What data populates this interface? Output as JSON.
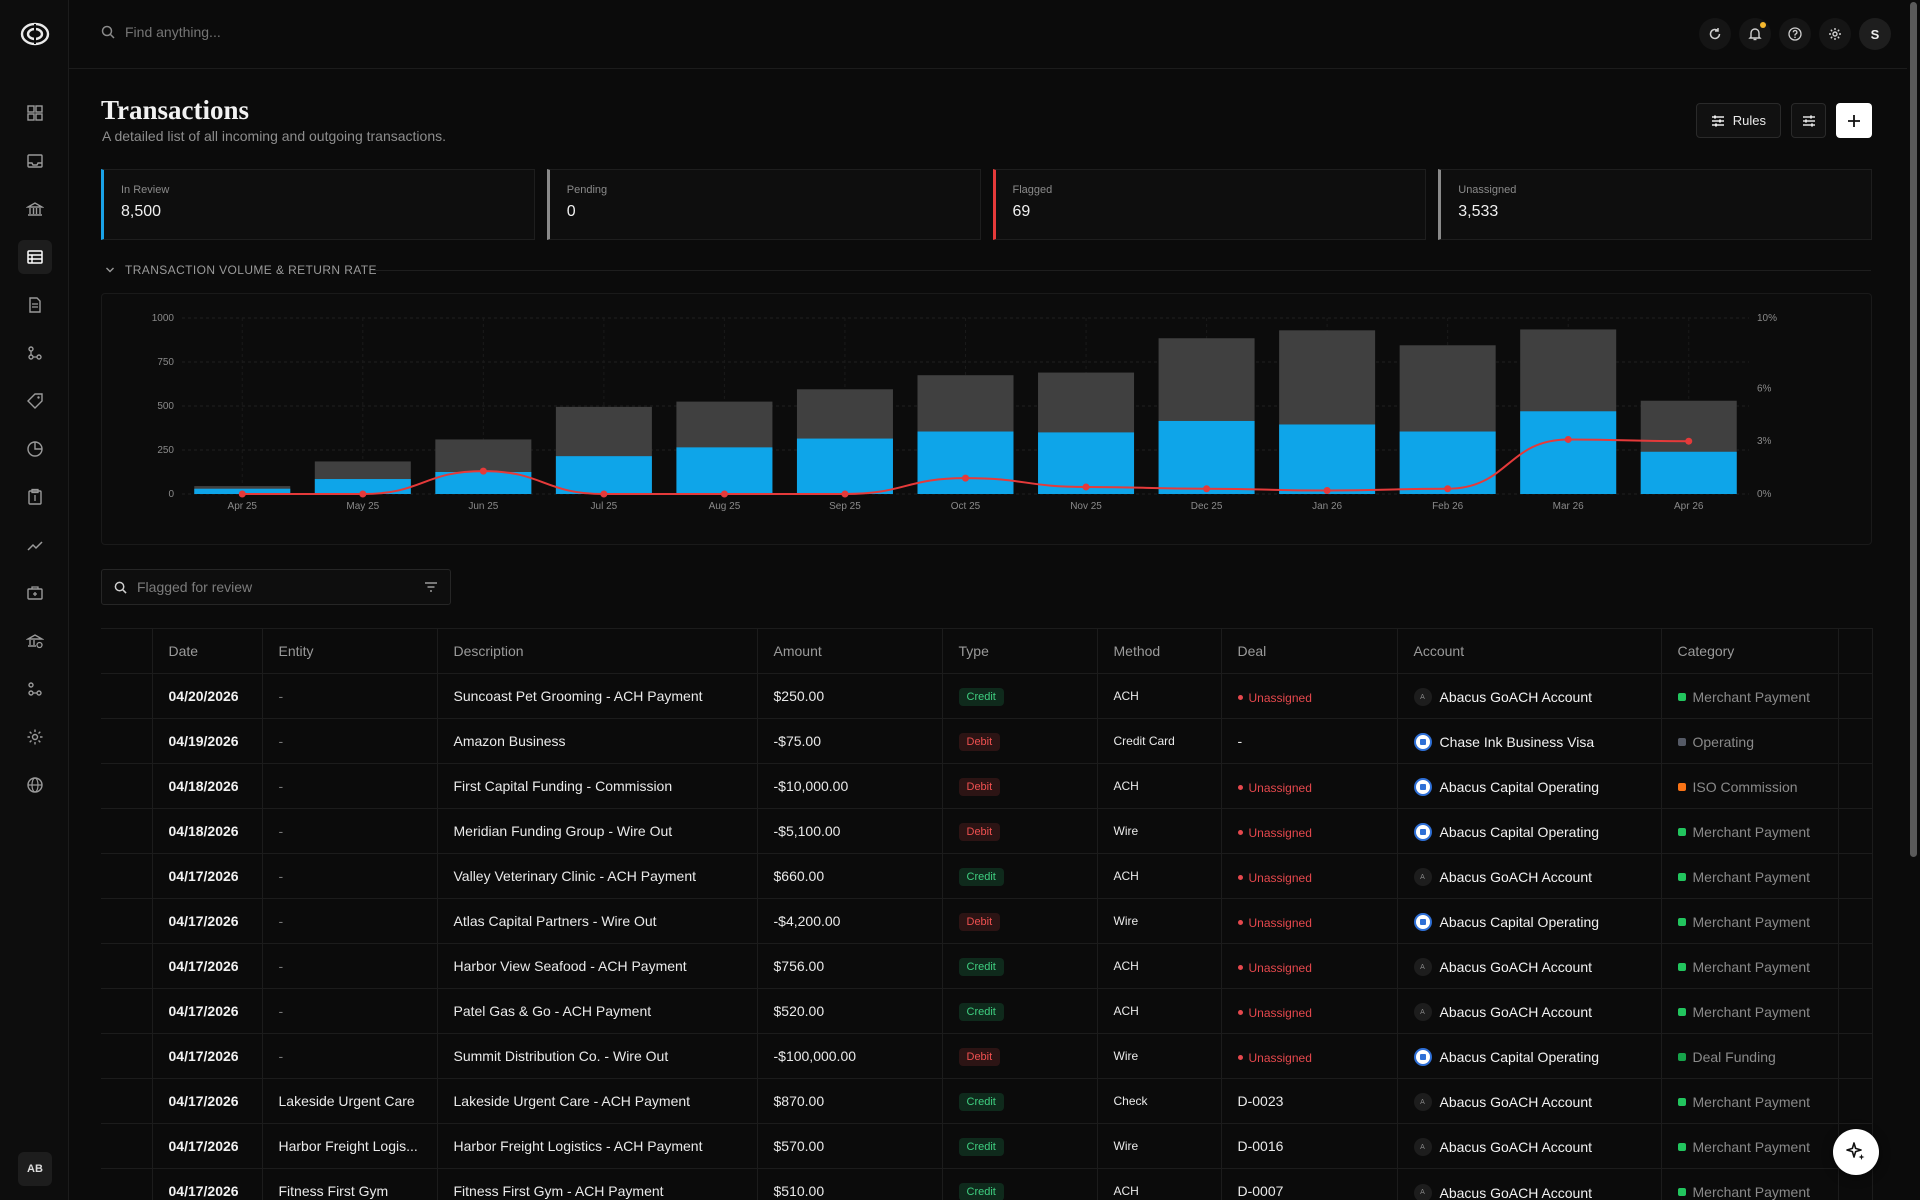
{
  "search": {
    "placeholder": "Find anything..."
  },
  "user": {
    "initial": "S",
    "workspace_initials": "AB"
  },
  "page": {
    "title": "Transactions",
    "subtitle": "A detailed list of all incoming and outgoing transactions.",
    "rules_label": "Rules"
  },
  "stats": [
    {
      "label": "In Review",
      "value": "8,500",
      "color": "#1aa3e8"
    },
    {
      "label": "Pending",
      "value": "0",
      "color": "#8a8a8a"
    },
    {
      "label": "Flagged",
      "value": "69",
      "color": "#e53a3a"
    },
    {
      "label": "Unassigned",
      "value": "3,533",
      "color": "#8a8a8a"
    }
  ],
  "chart_section": {
    "title": "TRANSACTION VOLUME & RETURN RATE"
  },
  "chart_data": {
    "type": "bar",
    "categories": [
      "Apr 25",
      "May 25",
      "Jun 25",
      "Jul 25",
      "Aug 25",
      "Sep 25",
      "Oct 25",
      "Nov 25",
      "Dec 25",
      "Jan 26",
      "Feb 26",
      "Mar 26",
      "Apr 26"
    ],
    "series": [
      {
        "values": [
          45,
          185,
          310,
          495,
          525,
          595,
          675,
          690,
          885,
          930,
          845,
          935,
          530
        ],
        "color": "#404040"
      },
      {
        "values": [
          30,
          85,
          125,
          215,
          265,
          315,
          355,
          350,
          415,
          395,
          355,
          470,
          240
        ],
        "color": "#0ea5e9"
      },
      {
        "values": [
          0,
          0,
          1.3,
          0,
          0,
          0,
          0.9,
          0.4,
          0.3,
          0.2,
          0.3,
          3.1,
          3.0
        ],
        "color": "#e53a3a",
        "axis": "right"
      }
    ],
    "y_left": {
      "ticks": [
        "0",
        "250",
        "500",
        "750",
        "1000"
      ],
      "range": [
        0,
        1000
      ]
    },
    "y_right": {
      "ticks": [
        "0%",
        "3%",
        "6%",
        "10%"
      ],
      "range": [
        0,
        10
      ]
    },
    "grid": true
  },
  "filter": {
    "placeholder": "Flagged for review"
  },
  "table": {
    "columns": [
      "Date",
      "Entity",
      "Description",
      "Amount",
      "Type",
      "Method",
      "Deal",
      "Account",
      "Category"
    ],
    "rows": [
      {
        "date": "04/20/2026",
        "entity": "-",
        "description": "Suncoast Pet Grooming - ACH Payment",
        "amount": "$250.00",
        "type": "Credit",
        "method": "ACH",
        "deal": "Unassigned",
        "account": "Abacus GoACH Account",
        "account_icon": "a",
        "category": "Merchant Payment",
        "category_color": "#22c55e"
      },
      {
        "date": "04/19/2026",
        "entity": "-",
        "description": "Amazon Business",
        "amount": "-$75.00",
        "type": "Debit",
        "method": "Credit Card",
        "deal": "-",
        "account": "Chase Ink Business Visa",
        "account_icon": "bank",
        "category": "Operating",
        "category_color": "#555a66"
      },
      {
        "date": "04/18/2026",
        "entity": "-",
        "description": "First Capital Funding - Commission",
        "amount": "-$10,000.00",
        "type": "Debit",
        "method": "ACH",
        "deal": "Unassigned",
        "account": "Abacus Capital Operating",
        "account_icon": "bank",
        "category": "ISO Commission",
        "category_color": "#f97316"
      },
      {
        "date": "04/18/2026",
        "entity": "-",
        "description": "Meridian Funding Group - Wire Out",
        "amount": "-$5,100.00",
        "type": "Debit",
        "method": "Wire",
        "deal": "Unassigned",
        "account": "Abacus Capital Operating",
        "account_icon": "bank",
        "category": "Merchant Payment",
        "category_color": "#22c55e"
      },
      {
        "date": "04/17/2026",
        "entity": "-",
        "description": "Valley Veterinary Clinic - ACH Payment",
        "amount": "$660.00",
        "type": "Credit",
        "method": "ACH",
        "deal": "Unassigned",
        "account": "Abacus GoACH Account",
        "account_icon": "a",
        "category": "Merchant Payment",
        "category_color": "#22c55e"
      },
      {
        "date": "04/17/2026",
        "entity": "-",
        "description": "Atlas Capital Partners - Wire Out",
        "amount": "-$4,200.00",
        "type": "Debit",
        "method": "Wire",
        "deal": "Unassigned",
        "account": "Abacus Capital Operating",
        "account_icon": "bank",
        "category": "Merchant Payment",
        "category_color": "#22c55e"
      },
      {
        "date": "04/17/2026",
        "entity": "-",
        "description": "Harbor View Seafood - ACH Payment",
        "amount": "$756.00",
        "type": "Credit",
        "method": "ACH",
        "deal": "Unassigned",
        "account": "Abacus GoACH Account",
        "account_icon": "a",
        "category": "Merchant Payment",
        "category_color": "#22c55e"
      },
      {
        "date": "04/17/2026",
        "entity": "-",
        "description": "Patel Gas & Go - ACH Payment",
        "amount": "$520.00",
        "type": "Credit",
        "method": "ACH",
        "deal": "Unassigned",
        "account": "Abacus GoACH Account",
        "account_icon": "a",
        "category": "Merchant Payment",
        "category_color": "#22c55e"
      },
      {
        "date": "04/17/2026",
        "entity": "-",
        "description": "Summit Distribution Co. - Wire Out",
        "amount": "-$100,000.00",
        "type": "Debit",
        "method": "Wire",
        "deal": "Unassigned",
        "account": "Abacus Capital Operating",
        "account_icon": "bank",
        "category": "Deal Funding",
        "category_color": "#16a34a"
      },
      {
        "date": "04/17/2026",
        "entity": "Lakeside Urgent Care",
        "description": "Lakeside Urgent Care - ACH Payment",
        "amount": "$870.00",
        "type": "Credit",
        "method": "Check",
        "deal": "D-0023",
        "account": "Abacus GoACH Account",
        "account_icon": "a",
        "category": "Merchant Payment",
        "category_color": "#22c55e"
      },
      {
        "date": "04/17/2026",
        "entity": "Harbor Freight Logis...",
        "description": "Harbor Freight Logistics - ACH Payment",
        "amount": "$570.00",
        "type": "Credit",
        "method": "Wire",
        "deal": "D-0016",
        "account": "Abacus GoACH Account",
        "account_icon": "a",
        "category": "Merchant Payment",
        "category_color": "#22c55e"
      },
      {
        "date": "04/17/2026",
        "entity": "Fitness First Gym",
        "description": "Fitness First Gym - ACH Payment",
        "amount": "$510.00",
        "type": "Credit",
        "method": "ACH",
        "deal": "D-0007",
        "account": "Abacus GoACH Account",
        "account_icon": "a",
        "category": "Merchant Payment",
        "category_color": "#22c55e"
      }
    ]
  },
  "nav_icons": [
    "dashboard-icon",
    "inbox-icon",
    "bank-icon",
    "transactions-icon",
    "document-icon",
    "workflow-icon",
    "tag-icon",
    "pie-chart-icon",
    "clipboard-icon",
    "trend-icon",
    "briefcase-icon",
    "bank-check-icon",
    "network-icon",
    "settings-icon",
    "globe-icon"
  ]
}
